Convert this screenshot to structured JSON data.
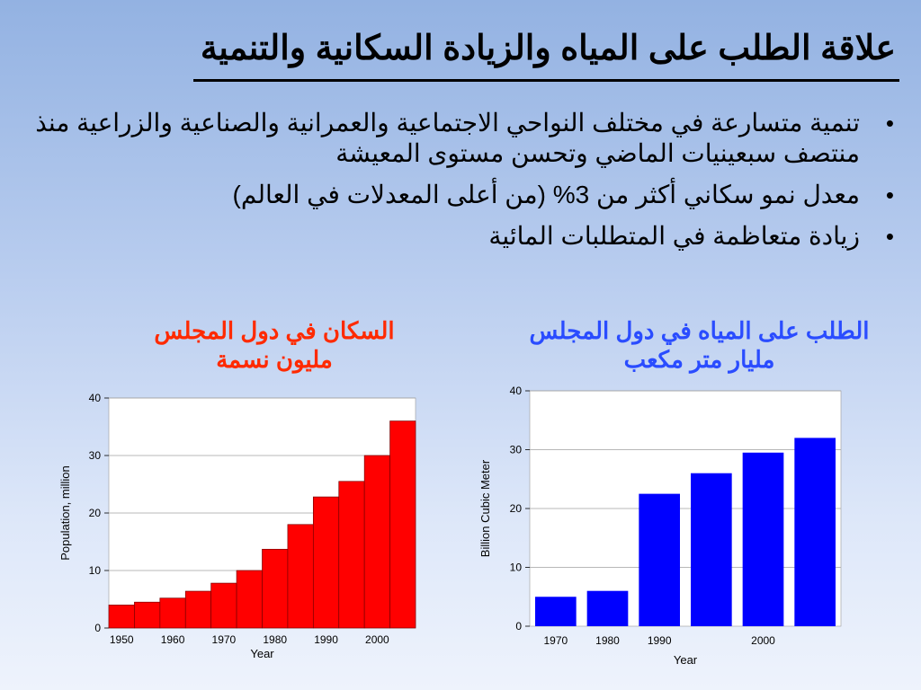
{
  "slide": {
    "title": "علاقة الطلب على المياه والزيادة السكانية والتنمية",
    "bullets": [
      "تنمية متسارعة في مختلف النواحي الاجتماعية والعمرانية والصناعية والزراعية منذ منتصف سبعينيات الماضي وتحسن مستوى المعيشة",
      "معدل نمو سكاني أكثر من 3% (من أعلى المعدلات في العالم)",
      "زيادة متعاظمة في المتطلبات المائية"
    ],
    "bullet_symbol": "•",
    "colors": {
      "population_bars": "#ff0000",
      "water_bars": "#0000ff",
      "population_title": "#ff2a00",
      "water_title": "#2a4cff"
    }
  },
  "chart_data": [
    {
      "type": "bar",
      "title": "السكان في دول المجلس",
      "subtitle": "مليون نسمة",
      "xlabel": "Year",
      "ylabel": "Population, million",
      "ylim": [
        0,
        40
      ],
      "yticks": [
        0,
        10,
        20,
        30,
        40
      ],
      "xtick_labels": [
        "1950",
        "1960",
        "1970",
        "1980",
        "1990",
        "2000"
      ],
      "categories": [
        "1950",
        "1955",
        "1960",
        "1965",
        "1970",
        "1975",
        "1980",
        "1985",
        "1990",
        "1995",
        "2000",
        "2005"
      ],
      "values": [
        4,
        4.5,
        5.2,
        6.4,
        7.8,
        10,
        13.7,
        18,
        22.8,
        25.5,
        30,
        36
      ],
      "color": "#ff0000",
      "grid": true
    },
    {
      "type": "bar",
      "title": "الطلب على المياه في دول المجلس",
      "subtitle": "مليار متر مكعب",
      "xlabel": "Year",
      "ylabel": "Billion Cubic Meter",
      "ylim": [
        0,
        40
      ],
      "yticks": [
        0,
        10,
        20,
        30,
        40
      ],
      "xtick_labels": [
        "1970",
        "1980",
        "1990",
        "2000"
      ],
      "categories": [
        "1970",
        "1980",
        "1990",
        "1995",
        "2000",
        "2005"
      ],
      "values": [
        5,
        6,
        22.5,
        26,
        29.5,
        32
      ],
      "color": "#0000ff",
      "grid": true
    }
  ]
}
